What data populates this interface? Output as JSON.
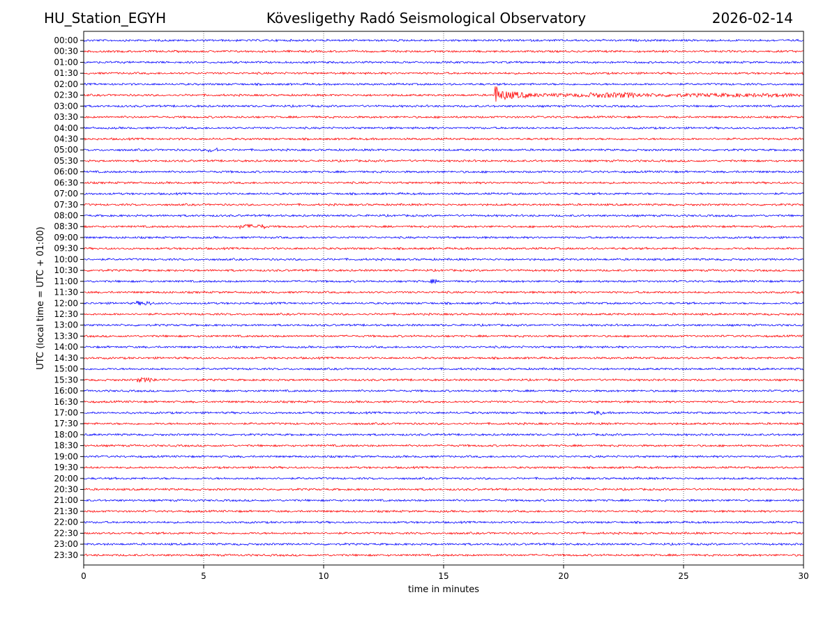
{
  "header": {
    "station": "HU_Station_EGYH",
    "title": "Kövesligethy Radó Seismological Observatory",
    "date": "2026-02-14"
  },
  "chart_data": {
    "type": "line",
    "subtype": "helicorder",
    "xlabel": "time in minutes",
    "ylabel": "UTC (local time = UTC + 01:00)",
    "xlim": [
      0,
      30
    ],
    "x_ticks": [
      0,
      5,
      10,
      15,
      20,
      25,
      30
    ],
    "vertical_grid": "dotted at each x tick",
    "row_labels": [
      "00:00",
      "00:30",
      "01:00",
      "01:30",
      "02:00",
      "02:30",
      "03:00",
      "03:30",
      "04:00",
      "04:30",
      "05:00",
      "05:30",
      "06:00",
      "06:30",
      "07:00",
      "07:30",
      "08:00",
      "08:30",
      "09:00",
      "09:30",
      "10:00",
      "10:30",
      "11:00",
      "11:30",
      "12:00",
      "12:30",
      "13:00",
      "13:30",
      "14:00",
      "14:30",
      "15:00",
      "15:30",
      "16:00",
      "16:30",
      "17:00",
      "17:30",
      "18:00",
      "18:30",
      "19:00",
      "19:30",
      "20:00",
      "20:30",
      "21:00",
      "21:30",
      "22:00",
      "22:30",
      "23:00",
      "23:30"
    ],
    "trace_colors": [
      "#0000ff",
      "#ff0000"
    ],
    "color_pattern": "alternating by row, starting blue",
    "events": [
      {
        "row": "02:30",
        "start_min": 17.1,
        "end_min": 30,
        "amplitude": "large",
        "note": "earthquake signal"
      },
      {
        "row": "05:00",
        "start_min": 5.2,
        "end_min": 5.6,
        "amplitude": "small"
      },
      {
        "row": "08:30",
        "start_min": 6.5,
        "end_min": 7.6,
        "amplitude": "small"
      },
      {
        "row": "11:00",
        "start_min": 14.4,
        "end_min": 14.7,
        "amplitude": "small"
      },
      {
        "row": "12:00",
        "start_min": 2.2,
        "end_min": 2.8,
        "amplitude": "small"
      },
      {
        "row": "15:30",
        "start_min": 2.2,
        "end_min": 3.0,
        "amplitude": "small"
      },
      {
        "row": "17:00",
        "start_min": 21.3,
        "end_min": 21.6,
        "amplitude": "small"
      }
    ]
  }
}
